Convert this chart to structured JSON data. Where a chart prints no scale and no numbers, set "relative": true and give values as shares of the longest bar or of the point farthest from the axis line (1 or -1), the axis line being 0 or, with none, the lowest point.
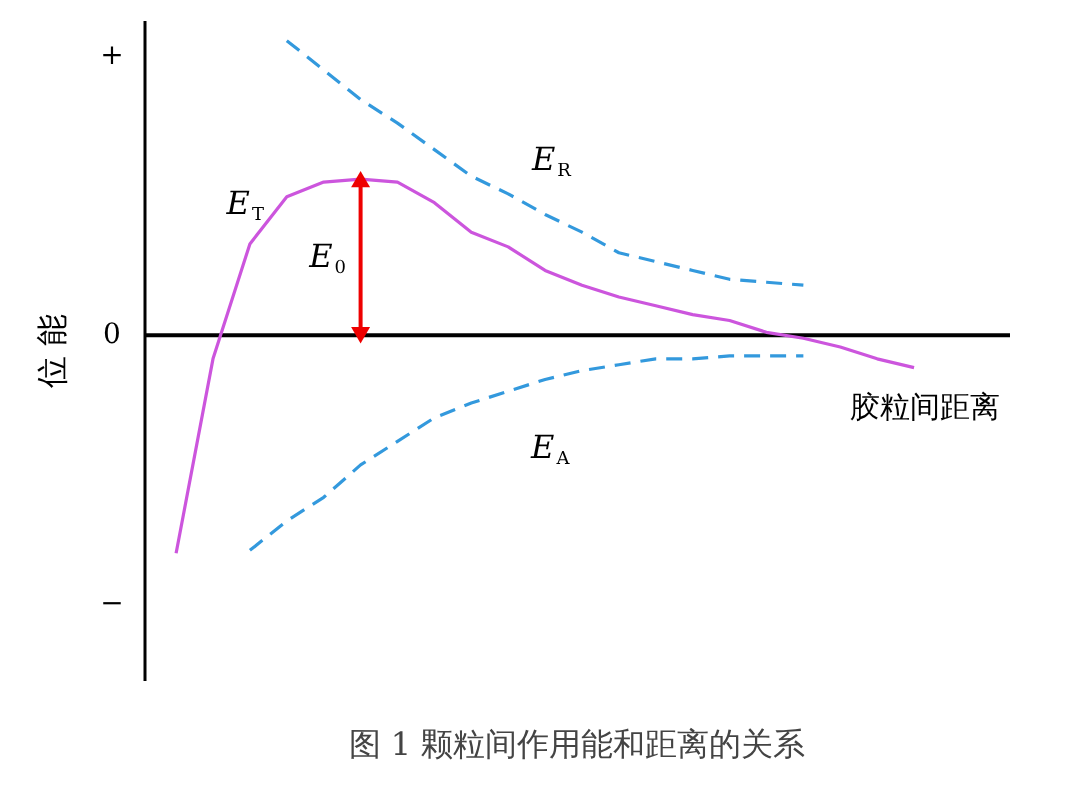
{
  "chart_data": {
    "type": "line",
    "relative": true,
    "ylabel": "位 能",
    "xlabel": "胶粒间距离",
    "title": "图 1    颗粒间作用能和距离的关系",
    "categories": [
      null,
      null,
      null,
      null,
      null,
      null,
      null,
      null,
      null,
      null,
      null,
      null,
      null,
      null,
      null,
      null,
      null,
      null,
      null,
      null,
      null
    ],
    "line_style": "solid",
    "series": [
      {
        "name": "E$_{T}$",
        "color": "#cc55dd",
        "values": [
          -0.74,
          -0.08,
          0.31,
          0.47,
          0.52,
          0.53,
          0.52,
          0.45,
          0.35,
          0.3,
          0.22,
          0.17,
          0.13,
          0.1,
          0.07,
          0.05,
          0.01,
          -0.01,
          -0.04,
          -0.08,
          -0.11
        ]
      },
      {
        "name": "E$_{R}$",
        "color": "#3399dd",
        "line_style": "dashed",
        "values": [
          null,
          null,
          null,
          1.0,
          0.9,
          0.8,
          0.72,
          0.63,
          0.54,
          0.48,
          0.41,
          0.35,
          0.28,
          0.25,
          0.22,
          0.19,
          0.18,
          0.17,
          null,
          null,
          null
        ]
      },
      {
        "name": "E$_{A}$",
        "color": "#3399dd",
        "line_style": "dashed",
        "values": [
          null,
          null,
          -0.73,
          -0.63,
          -0.55,
          -0.44,
          -0.36,
          -0.28,
          -0.23,
          -0.19,
          -0.15,
          -0.12,
          -0.1,
          -0.08,
          -0.08,
          -0.07,
          -0.07,
          -0.07,
          null,
          null,
          null
        ]
      }
    ],
    "annotations": [
      "E$_{0}$",
      "+",
      "0",
      "−"
    ]
  }
}
